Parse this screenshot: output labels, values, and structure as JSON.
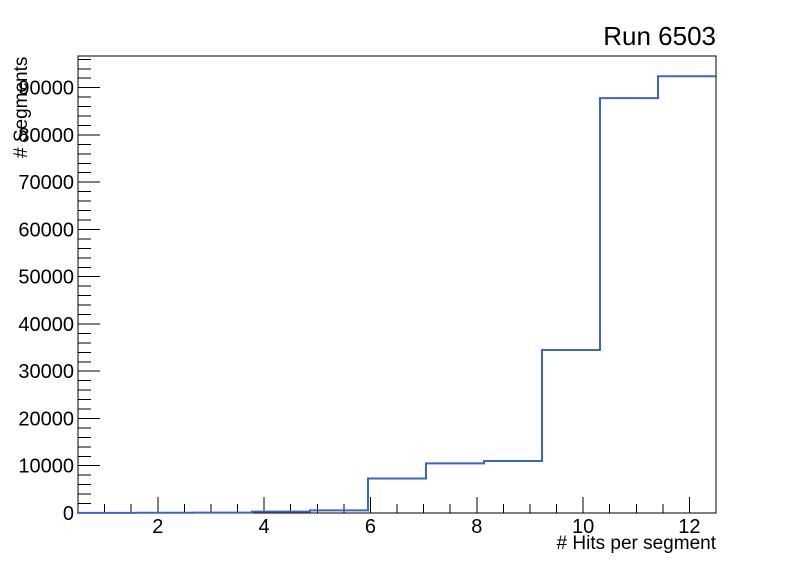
{
  "title": "Run 6503",
  "chart_data": {
    "type": "step-histogram",
    "title": "Run 6503",
    "xlabel": "# Hits per segment",
    "ylabel": "# Segments",
    "x_range": [
      0.5,
      12.5
    ],
    "y_range": [
      0,
      96700
    ],
    "x_tick_values": [
      2,
      4,
      6,
      8,
      10,
      12
    ],
    "x_tick_labels": [
      "2",
      "4",
      "6",
      "8",
      "10",
      "12"
    ],
    "x_minor_step": 0.5,
    "y_tick_values": [
      0,
      10000,
      20000,
      30000,
      40000,
      50000,
      60000,
      70000,
      80000,
      90000
    ],
    "y_tick_labels": [
      "0",
      "10000",
      "20000",
      "30000",
      "40000",
      "50000",
      "60000",
      "70000",
      "80000",
      "90000"
    ],
    "y_minor_step": 2000,
    "grid": false,
    "legend_position": "none",
    "line_color": "#3b65c5",
    "frame_color": "#000000",
    "background_color": "#ffffff",
    "bin_edges": [
      0.5,
      1.5909,
      2.6818,
      3.7727,
      4.8636,
      5.9545,
      7.0455,
      8.1364,
      9.2273,
      10.3182,
      11.4091,
      12.5
    ],
    "values": [
      30,
      40,
      80,
      300,
      550,
      7300,
      10500,
      11000,
      34500,
      87800,
      92400
    ]
  }
}
